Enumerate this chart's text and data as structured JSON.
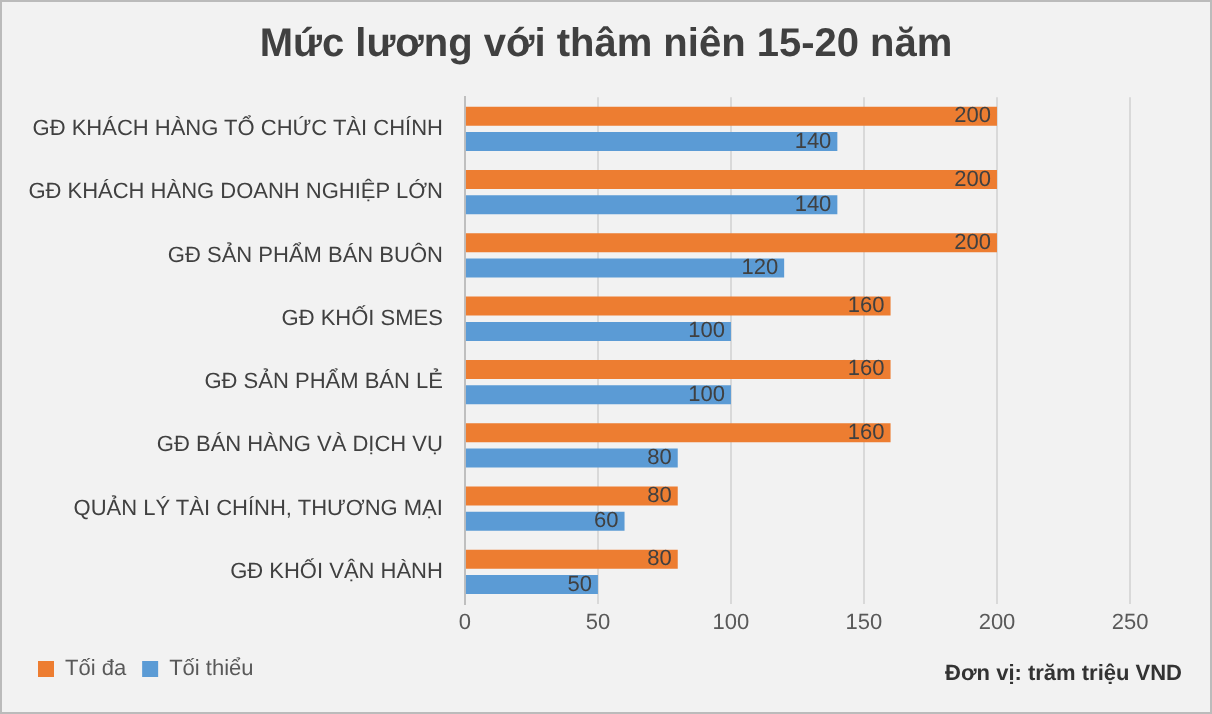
{
  "chart_data": {
    "type": "bar",
    "orientation": "horizontal",
    "title": "Mức lương với thâm niên 15-20 năm",
    "categories": [
      "GĐ KHÁCH HÀNG TỔ CHỨC TÀI CHÍNH",
      "GĐ KHÁCH HÀNG DOANH NGHIỆP LỚN",
      "GĐ SẢN PHẨM BÁN BUÔN",
      "GĐ KHỐI SMES",
      "GĐ SẢN PHẨM BÁN LẺ",
      "GĐ BÁN HÀNG VÀ DỊCH VỤ",
      "QUẢN LÝ TÀI CHÍNH, THƯƠNG MẠI",
      "GĐ KHỐI VẬN HÀNH"
    ],
    "series": [
      {
        "name": "Tối đa",
        "color": "#ed7d31",
        "values": [
          200,
          200,
          200,
          160,
          160,
          160,
          80,
          80
        ]
      },
      {
        "name": "Tối thiểu",
        "color": "#5b9bd5",
        "values": [
          140,
          140,
          120,
          100,
          100,
          80,
          60,
          50
        ]
      }
    ],
    "xlim": [
      0,
      250
    ],
    "xticks": [
      0,
      50,
      100,
      150,
      200,
      250
    ],
    "grid": "x",
    "legend": "bottom",
    "data_labels": true,
    "annotations": [
      "Đơn vị: trăm triệu VND"
    ]
  }
}
